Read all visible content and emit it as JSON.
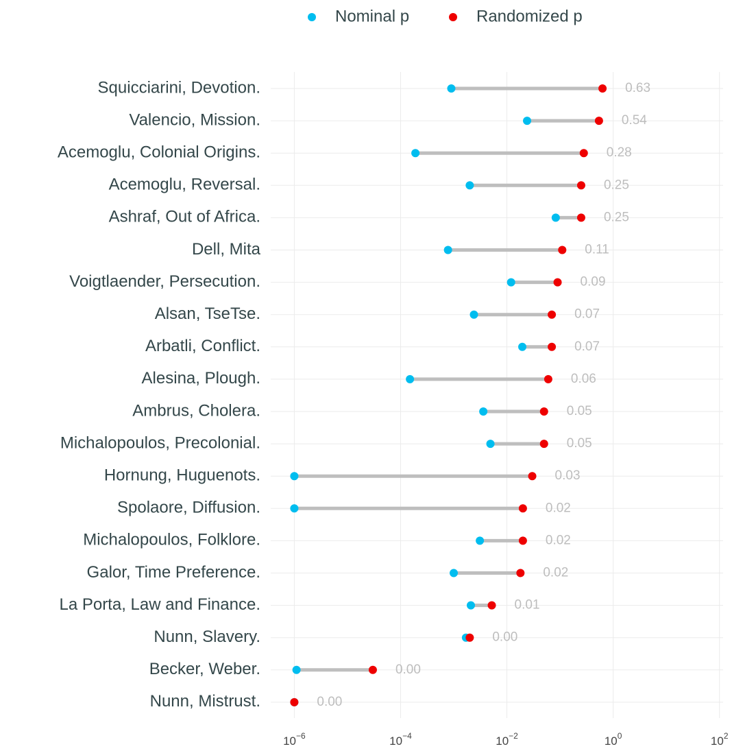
{
  "chart_data": {
    "type": "dumbbell",
    "categories": [
      "Squicciarini, Devotion.",
      "Valencio, Mission.",
      "Acemoglu, Colonial Origins.",
      "Acemoglu, Reversal.",
      "Ashraf, Out of Africa.",
      "Dell, Mita",
      "Voigtlaender, Persecution.",
      "Alsan, TseTse.",
      "Arbatli, Conflict.",
      "Alesina, Plough.",
      "Ambrus, Cholera.",
      "Michalopoulos, Precolonial.",
      "Hornung, Huguenots.",
      "Spolaore, Diffusion.",
      "Michalopoulos, Folklore.",
      "Galor, Time Preference.",
      "La Porta, Law and Finance.",
      "Nunn, Slavery.",
      "Becker, Weber.",
      "Nunn, Mistrust."
    ],
    "series": [
      {
        "name": "Nominal p",
        "color": "#00bdef",
        "values": [
          0.0009,
          0.024,
          0.00019,
          0.002,
          0.083,
          0.00078,
          0.012,
          0.0024,
          0.0195,
          0.00015,
          0.0036,
          0.0049,
          1e-06,
          1e-06,
          0.0031,
          0.001,
          0.0021,
          0.0017,
          1.1e-06,
          1e-06
        ]
      },
      {
        "name": "Randomized p",
        "color": "#ee0000",
        "values": [
          0.63,
          0.54,
          0.28,
          0.25,
          0.25,
          0.11,
          0.09,
          0.07,
          0.07,
          0.06,
          0.05,
          0.05,
          0.03,
          0.02,
          0.02,
          0.018,
          0.0052,
          0.002,
          3e-05,
          1e-06
        ],
        "value_labels": [
          "0.63",
          "0.54",
          "0.28",
          "0.25",
          "0.25",
          "0.11",
          "0.09",
          "0.07",
          "0.07",
          "0.06",
          "0.05",
          "0.05",
          "0.03",
          "0.02",
          "0.02",
          "0.02",
          "0.01",
          "0.00",
          "0.00",
          "0.00"
        ]
      }
    ],
    "log_x": true,
    "xlim": [
      3.6e-07,
      117
    ],
    "xticks": [
      {
        "value": 1e-06,
        "label": "10",
        "exponent": "−6"
      },
      {
        "value": 0.0001,
        "label": "10",
        "exponent": "−4"
      },
      {
        "value": 0.01,
        "label": "10",
        "exponent": "−2"
      },
      {
        "value": 1,
        "label": "10",
        "exponent": "0"
      },
      {
        "value": 100,
        "label": "10",
        "exponent": "2"
      }
    ],
    "segment_color": "#bebebe",
    "grid": true,
    "legend": "top"
  }
}
